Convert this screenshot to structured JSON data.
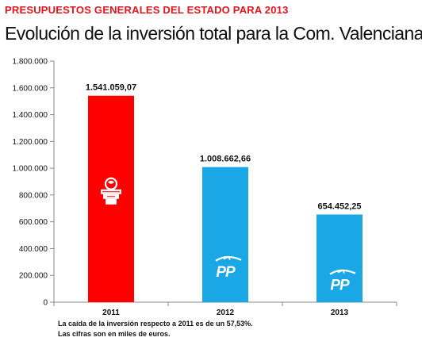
{
  "header": {
    "supertitle": "PRESUPUESTOS GENERALES DEL ESTADO PARA 2013",
    "title": "Evolución de la inversión total para la Com. Valenciana"
  },
  "chart_data": {
    "type": "bar",
    "title": "Evolución de la inversión total para la Com. Valenciana",
    "xlabel": "",
    "ylabel": "",
    "categories": [
      "2011",
      "2012",
      "2013"
    ],
    "values": [
      1541059.07,
      1008662.66,
      654452.25
    ],
    "value_labels": [
      "1.541.059,07",
      "1.008.662,66",
      "654.452,25"
    ],
    "bar_colors": [
      "#ff0000",
      "#1aa7e6",
      "#1aa7e6"
    ],
    "bar_logos": [
      "psoe-rose-logo",
      "pp-logo",
      "pp-logo"
    ],
    "logo_text": [
      "",
      "PP",
      "PP"
    ],
    "ylim": [
      0,
      1800000
    ],
    "yticks": [
      0,
      200000,
      400000,
      600000,
      800000,
      1000000,
      1200000,
      1400000,
      1600000,
      1800000
    ],
    "ytick_labels": [
      "0",
      "200.000",
      "400.000",
      "600.000",
      "800.000",
      "1.000.000",
      "1.200.000",
      "1.400.000",
      "1.600.000",
      "1.800.000"
    ],
    "grid": false,
    "legend": "none"
  },
  "footnotes": [
    "La caída de la inversión respecto  a 2011 es de un 57,53%.",
    "Las cifras son en miles de euros."
  ],
  "colors": {
    "supertitle": "#e8141b",
    "axis": "#888888"
  }
}
